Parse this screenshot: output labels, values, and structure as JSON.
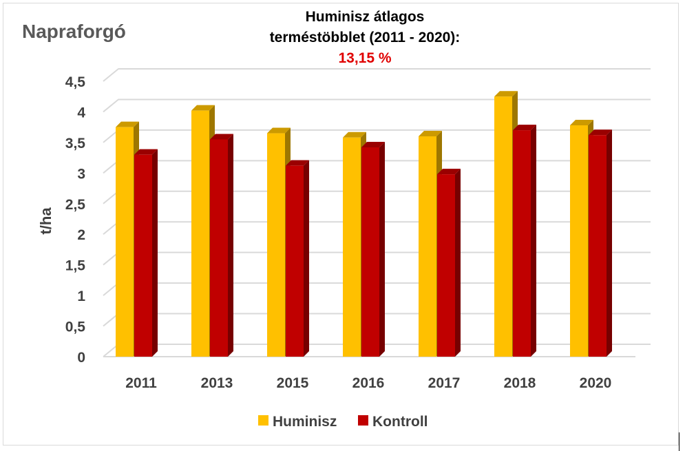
{
  "header": {
    "crop_name": "Napraforgó",
    "title_line1": "Huminisz átlagos",
    "title_line2": "terméstöbblet (2011 - 2020):",
    "title_value": "13,15 %"
  },
  "colors": {
    "huminisz": "#ffc000",
    "kontroll": "#c00000",
    "gridline": "#d9d9d9"
  },
  "chart_data": {
    "type": "bar",
    "title": "Huminisz átlagos terméstöbblet (2011 - 2020): 13,15 %",
    "xlabel": "",
    "ylabel": "t/ha",
    "ylim": [
      0,
      4.5
    ],
    "yticks": [
      "0",
      "0,5",
      "1",
      "1,5",
      "2",
      "2,5",
      "3",
      "3,5",
      "4",
      "4,5"
    ],
    "categories": [
      "2011",
      "2013",
      "2015",
      "2016",
      "2017",
      "2018",
      "2020"
    ],
    "series": [
      {
        "name": "Huminisz",
        "values": [
          3.75,
          4.02,
          3.65,
          3.58,
          3.6,
          4.25,
          3.78
        ]
      },
      {
        "name": "Kontroll",
        "values": [
          3.3,
          3.55,
          3.12,
          3.42,
          2.98,
          3.7,
          3.62
        ]
      }
    ],
    "grid": true,
    "legend": "bottom"
  }
}
